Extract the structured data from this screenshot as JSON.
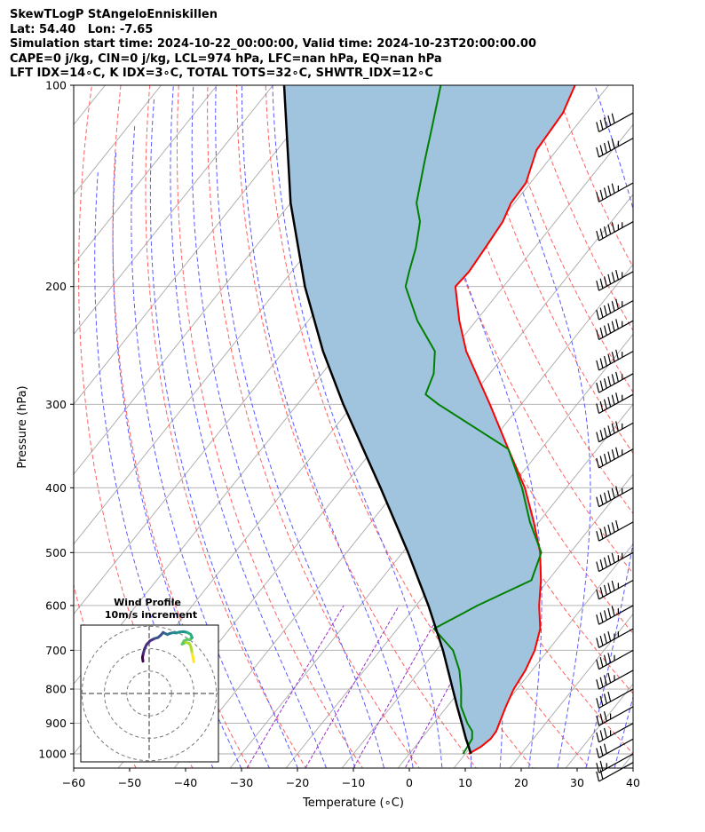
{
  "header": {
    "line1": "SkewTLogP StAngeloEnniskillen",
    "line2": "Lat: 54.40   Lon: -7.65",
    "line3": "Simulation start time: 2024-10-22_00:00:00, Valid time: 2024-10-23T20:00:00.00",
    "line4": "CAPE=0 j/kg, CIN=0 j/kg, LCL=974 hPa, LFC=nan hPa, EQ=nan hPa",
    "line5": "LFT IDX=14∘C, K IDX=3∘C, TOTAL TOTS=32∘C, SHWTR_IDX=12∘C"
  },
  "chart_data": {
    "type": "line",
    "xlabel": "Temperature (∘C)",
    "ylabel": "Pressure (hPa)",
    "xlim": [
      -60,
      40
    ],
    "ylim": [
      1050,
      100
    ],
    "yscale": "log",
    "x_ticks": [
      "−60",
      "−50",
      "−40",
      "−30",
      "−20",
      "−10",
      "0",
      "10",
      "20",
      "30",
      "40"
    ],
    "x_tick_values": [
      -60,
      -50,
      -40,
      -30,
      -20,
      -10,
      0,
      10,
      20,
      30,
      40
    ],
    "y_ticks": [
      "100",
      "200",
      "300",
      "400",
      "500",
      "600",
      "700",
      "800",
      "900",
      "1000"
    ],
    "y_tick_values": [
      100,
      200,
      300,
      400,
      500,
      600,
      700,
      800,
      900,
      1000
    ],
    "grid": true,
    "colors": {
      "temperature": "#ff0000",
      "dewpoint": "#008000",
      "parcel": "#000000",
      "cape_fill": "#a1c4de",
      "dry_adiabats": "#ff6060",
      "moist_adiabats": "#5a5aff",
      "mixing_ratio": "#9a30c8",
      "isotherms": "#aaaaaa"
    },
    "series": [
      {
        "key": "temperature",
        "pressure": [
          1000,
          975,
          950,
          925,
          900,
          850,
          800,
          750,
          700,
          650,
          600,
          550,
          500,
          450,
          400,
          350,
          300,
          250,
          225,
          200,
          190,
          175,
          160,
          150,
          140,
          125,
          110,
          100
        ],
        "temp": [
          10.6,
          11.8,
          12.4,
          12.3,
          11.7,
          10.5,
          9.4,
          8.8,
          7.6,
          5.5,
          2.0,
          -1.3,
          -5.4,
          -10.9,
          -17.4,
          -25.9,
          -35.6,
          -47.4,
          -53.0,
          -58.6,
          -58.3,
          -58.8,
          -59.4,
          -60.6,
          -60.8,
          -63.6,
          -64.2,
          -66.0
        ]
      },
      {
        "key": "dewpoint",
        "pressure": [
          1000,
          950,
          925,
          900,
          850,
          800,
          750,
          700,
          650,
          600,
          550,
          500,
          450,
          400,
          350,
          300,
          290,
          270,
          250,
          225,
          200,
          190,
          175,
          160,
          150,
          130,
          115,
          100
        ],
        "temp": [
          9.6,
          9.1,
          8.0,
          6.0,
          2.5,
          0.0,
          -3.0,
          -7.0,
          -13.5,
          -9.0,
          -3.0,
          -5.2,
          -11.6,
          -17.9,
          -25.9,
          -44.8,
          -48.5,
          -50.0,
          -53.0,
          -60.5,
          -67.5,
          -69.0,
          -71.2,
          -74.2,
          -77.5,
          -82.0,
          -85.7,
          -90.0
        ]
      },
      {
        "key": "parcel",
        "pressure": [
          1000,
          974,
          950,
          900,
          850,
          800,
          700,
          600,
          500,
          400,
          300,
          250,
          200,
          150,
          100
        ],
        "temp": [
          11.0,
          9.5,
          8.0,
          5.0,
          1.8,
          -1.5,
          -8.8,
          -17.8,
          -29.0,
          -43.2,
          -61.8,
          -73.0,
          -85.5,
          -100.0,
          -118.0
        ]
      }
    ],
    "fill": {
      "between": [
        "temperature",
        "parcel"
      ],
      "color": "#a1c4de"
    },
    "wind_barbs": {
      "pressure": [
        1030,
        1000,
        950,
        900,
        850,
        800,
        750,
        700,
        650,
        600,
        550,
        500,
        450,
        400,
        350,
        320,
        290,
        270,
        250,
        225,
        210,
        190,
        160,
        140,
        120,
        110
      ],
      "speed_kt": [
        22,
        24,
        30,
        34,
        37,
        41,
        45,
        47,
        49,
        53,
        56,
        58,
        61,
        63,
        66,
        66,
        66,
        67,
        66,
        66,
        66,
        64,
        59,
        57,
        54,
        52
      ]
    },
    "inset": {
      "title": "Wind Profile",
      "subtitle": "10m/s increment",
      "hodograph_u": [
        -1.2,
        -1.4,
        -1.1,
        -0.6,
        0.2,
        1.6,
        3.2,
        4.6,
        5.7,
        6.6,
        7.4,
        8.3,
        9.2,
        10.4,
        11.8,
        13.1,
        14.6,
        16.0,
        17.3,
        17.9,
        17.0,
        15.9,
        14.7,
        14.0,
        15.4,
        16.7,
        17.3,
        17.6,
        17.9,
        18.3,
        18.5
      ],
      "hodograph_v": [
        8.5,
        10.0,
        11.5,
        13.3,
        15.0,
        16.5,
        17.3,
        17.7,
        18.6,
        19.7,
        19.3,
        18.9,
        19.3,
        19.6,
        19.5,
        19.9,
        20.0,
        19.7,
        19.0,
        17.7,
        16.9,
        17.0,
        16.4,
        15.2,
        15.8,
        15.5,
        14.5,
        13.2,
        11.5,
        9.8,
        8.3
      ]
    }
  }
}
